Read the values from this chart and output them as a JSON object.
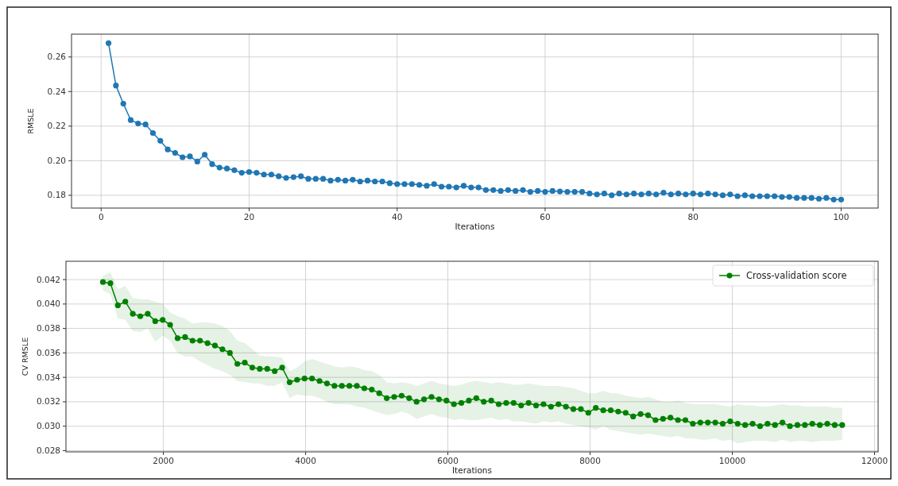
{
  "chart_data": [
    {
      "type": "line",
      "xlabel": "Iterations",
      "ylabel": "RMSLE",
      "marker": "circle",
      "grid": true,
      "x": [
        1,
        2,
        3,
        4,
        5,
        6,
        7,
        8,
        9,
        10,
        11,
        12,
        13,
        14,
        15,
        16,
        17,
        18,
        19,
        20,
        21,
        22,
        23,
        24,
        25,
        26,
        27,
        28,
        29,
        30,
        31,
        32,
        33,
        34,
        35,
        36,
        37,
        38,
        39,
        40,
        41,
        42,
        43,
        44,
        45,
        46,
        47,
        48,
        49,
        50,
        51,
        52,
        53,
        54,
        55,
        56,
        57,
        58,
        59,
        60,
        61,
        62,
        63,
        64,
        65,
        66,
        67,
        68,
        69,
        70,
        71,
        72,
        73,
        74,
        75,
        76,
        77,
        78,
        79,
        80,
        81,
        82,
        83,
        84,
        85,
        86,
        87,
        88,
        89,
        90,
        91,
        92,
        93,
        94,
        95,
        96,
        97,
        98,
        99,
        100
      ],
      "series": [
        {
          "color": "#1f77b4",
          "values": [
            0.268,
            0.2435,
            0.233,
            0.2235,
            0.2215,
            0.221,
            0.216,
            0.2115,
            0.2065,
            0.2045,
            0.202,
            0.2025,
            0.1995,
            0.2035,
            0.198,
            0.196,
            0.1955,
            0.1945,
            0.193,
            0.1935,
            0.193,
            0.192,
            0.192,
            0.191,
            0.19,
            0.1905,
            0.191,
            0.1895,
            0.1895,
            0.1895,
            0.1885,
            0.189,
            0.1885,
            0.189,
            0.188,
            0.1885,
            0.188,
            0.188,
            0.187,
            0.1865,
            0.1865,
            0.1865,
            0.186,
            0.1855,
            0.1865,
            0.185,
            0.185,
            0.1845,
            0.1855,
            0.1845,
            0.1845,
            0.183,
            0.183,
            0.1825,
            0.183,
            0.1825,
            0.183,
            0.182,
            0.1825,
            0.182,
            0.1825,
            0.1822,
            0.182,
            0.182,
            0.182,
            0.181,
            0.1805,
            0.181,
            0.18,
            0.181,
            0.1805,
            0.181,
            0.1805,
            0.181,
            0.1805,
            0.1815,
            0.1805,
            0.181,
            0.1805,
            0.181,
            0.1805,
            0.181,
            0.1805,
            0.18,
            0.1805,
            0.1795,
            0.18,
            0.1795,
            0.1795,
            0.1795,
            0.1795,
            0.179,
            0.179,
            0.1785,
            0.1785,
            0.1785,
            0.178,
            0.1785,
            0.1775,
            0.1775
          ]
        }
      ],
      "xlim": [
        -4,
        105
      ],
      "ylim": [
        0.1726,
        0.2732
      ],
      "xticks": [
        0,
        20,
        40,
        60,
        80,
        100
      ],
      "yticks": [
        0.18,
        {
          "value": 0.2,
          "label": "0.20"
        },
        0.22,
        0.24,
        0.26
      ]
    },
    {
      "type": "line",
      "xlabel": "Iterations",
      "ylabel": "CV RMSLE",
      "marker": "circle",
      "grid": true,
      "legend": "top right",
      "x": [
        1150,
        1255,
        1360,
        1465,
        1570,
        1675,
        1780,
        1885,
        1990,
        2095,
        2200,
        2305,
        2410,
        2515,
        2620,
        2725,
        2830,
        2935,
        3040,
        3145,
        3250,
        3355,
        3460,
        3565,
        3670,
        3775,
        3880,
        3985,
        4090,
        4195,
        4300,
        4405,
        4510,
        4615,
        4720,
        4825,
        4930,
        5035,
        5140,
        5245,
        5350,
        5455,
        5560,
        5665,
        5770,
        5875,
        5980,
        6085,
        6190,
        6295,
        6400,
        6505,
        6610,
        6715,
        6820,
        6925,
        7030,
        7135,
        7240,
        7345,
        7450,
        7555,
        7660,
        7765,
        7870,
        7975,
        8080,
        8185,
        8290,
        8395,
        8500,
        8605,
        8710,
        8815,
        8920,
        9025,
        9130,
        9235,
        9340,
        9445,
        9550,
        9655,
        9760,
        9865,
        9970,
        10075,
        10180,
        10285,
        10390,
        10495,
        10600,
        10705,
        10810,
        10915,
        11020,
        11125,
        11230,
        11335,
        11440,
        11545
      ],
      "series": [
        {
          "name": "Cross-validation score",
          "color": "#008000",
          "values": [
            0.0418,
            0.0417,
            0.0399,
            0.0402,
            0.0392,
            0.039,
            0.0392,
            0.0386,
            0.0387,
            0.0383,
            0.0372,
            0.0373,
            0.037,
            0.037,
            0.0368,
            0.0366,
            0.0363,
            0.036,
            0.0351,
            0.0352,
            0.0348,
            0.0347,
            0.0347,
            0.0345,
            0.0348,
            0.0336,
            0.0338,
            0.0339,
            0.0339,
            0.0337,
            0.0335,
            0.0333,
            0.0333,
            0.0333,
            0.0333,
            0.0331,
            0.033,
            0.0327,
            0.0323,
            0.0324,
            0.0325,
            0.0323,
            0.032,
            0.0322,
            0.0324,
            0.0322,
            0.0321,
            0.0318,
            0.0319,
            0.0321,
            0.0323,
            0.032,
            0.0321,
            0.0318,
            0.0319,
            0.0319,
            0.0317,
            0.0319,
            0.0317,
            0.0318,
            0.0316,
            0.0318,
            0.0316,
            0.0314,
            0.0314,
            0.0311,
            0.0315,
            0.0313,
            0.0313,
            0.0312,
            0.0311,
            0.0308,
            0.031,
            0.0309,
            0.0305,
            0.0306,
            0.0307,
            0.0305,
            0.0305,
            0.0302,
            0.0303,
            0.0303,
            0.0303,
            0.0302,
            0.0304,
            0.0302,
            0.0301,
            0.0302,
            0.03,
            0.0302,
            0.0301,
            0.0303,
            0.03,
            0.0301,
            0.0301,
            0.0302,
            0.0301,
            0.0302,
            0.0301,
            0.0301
          ],
          "upper": [
            0.0423,
            0.0426,
            0.0412,
            0.0415,
            0.0405,
            0.0404,
            0.0404,
            0.0402,
            0.04,
            0.0393,
            0.039,
            0.0388,
            0.0384,
            0.0385,
            0.0385,
            0.0384,
            0.0382,
            0.0378,
            0.037,
            0.0368,
            0.0363,
            0.0358,
            0.0357,
            0.0357,
            0.0356,
            0.0345,
            0.0348,
            0.0353,
            0.0355,
            0.0353,
            0.0351,
            0.0349,
            0.0348,
            0.0349,
            0.0348,
            0.0346,
            0.0345,
            0.0342,
            0.0336,
            0.0335,
            0.0336,
            0.0335,
            0.0333,
            0.0335,
            0.0337,
            0.0335,
            0.0334,
            0.0333,
            0.0334,
            0.0336,
            0.0337,
            0.0336,
            0.0335,
            0.0336,
            0.0335,
            0.0334,
            0.0334,
            0.0335,
            0.0334,
            0.0333,
            0.0333,
            0.0333,
            0.0332,
            0.0331,
            0.0329,
            0.0327,
            0.0327,
            0.0329,
            0.0327,
            0.0327,
            0.0325,
            0.0324,
            0.0323,
            0.0324,
            0.0322,
            0.032,
            0.032,
            0.0321,
            0.0319,
            0.0318,
            0.0318,
            0.0318,
            0.0318,
            0.0317,
            0.0316,
            0.0318,
            0.0317,
            0.0317,
            0.0316,
            0.0316,
            0.0317,
            0.0318,
            0.0317,
            0.0317,
            0.0316,
            0.0316,
            0.0316,
            0.0316,
            0.0315,
            0.0315
          ],
          "lower": [
            0.0411,
            0.0408,
            0.0388,
            0.0387,
            0.0378,
            0.0377,
            0.038,
            0.0369,
            0.0374,
            0.037,
            0.036,
            0.0357,
            0.0357,
            0.0353,
            0.035,
            0.0347,
            0.0345,
            0.0342,
            0.0337,
            0.0336,
            0.0335,
            0.0335,
            0.0333,
            0.0333,
            0.0336,
            0.0323,
            0.0326,
            0.0325,
            0.0325,
            0.0323,
            0.032,
            0.0318,
            0.0318,
            0.0318,
            0.0316,
            0.0315,
            0.0313,
            0.0311,
            0.0309,
            0.031,
            0.0312,
            0.031,
            0.0306,
            0.0308,
            0.031,
            0.0308,
            0.0307,
            0.0305,
            0.0306,
            0.0305,
            0.0305,
            0.0306,
            0.0307,
            0.0305,
            0.0306,
            0.0304,
            0.0304,
            0.0303,
            0.0302,
            0.0304,
            0.0303,
            0.0304,
            0.0302,
            0.0301,
            0.03,
            0.0299,
            0.0297,
            0.03,
            0.0297,
            0.0296,
            0.0295,
            0.0294,
            0.0293,
            0.0294,
            0.0293,
            0.0292,
            0.0291,
            0.0292,
            0.029,
            0.029,
            0.0289,
            0.0289,
            0.029,
            0.0288,
            0.0289,
            0.0286,
            0.0287,
            0.0288,
            0.0288,
            0.0288,
            0.0287,
            0.0289,
            0.0287,
            0.0288,
            0.0288,
            0.0287,
            0.0288,
            0.0288,
            0.0288,
            0.0289
          ]
        }
      ],
      "xlim": [
        630,
        12050
      ],
      "ylim": [
        0.0279,
        0.0435
      ],
      "xticks": [
        2000,
        4000,
        6000,
        8000,
        10000,
        12000
      ],
      "yticks": [
        {
          "value": 0.028,
          "label": "0.028"
        },
        {
          "value": 0.03,
          "label": "0.030"
        },
        0.032,
        0.034,
        0.036,
        0.038,
        {
          "value": 0.04,
          "label": "0.040"
        },
        0.042
      ]
    }
  ]
}
